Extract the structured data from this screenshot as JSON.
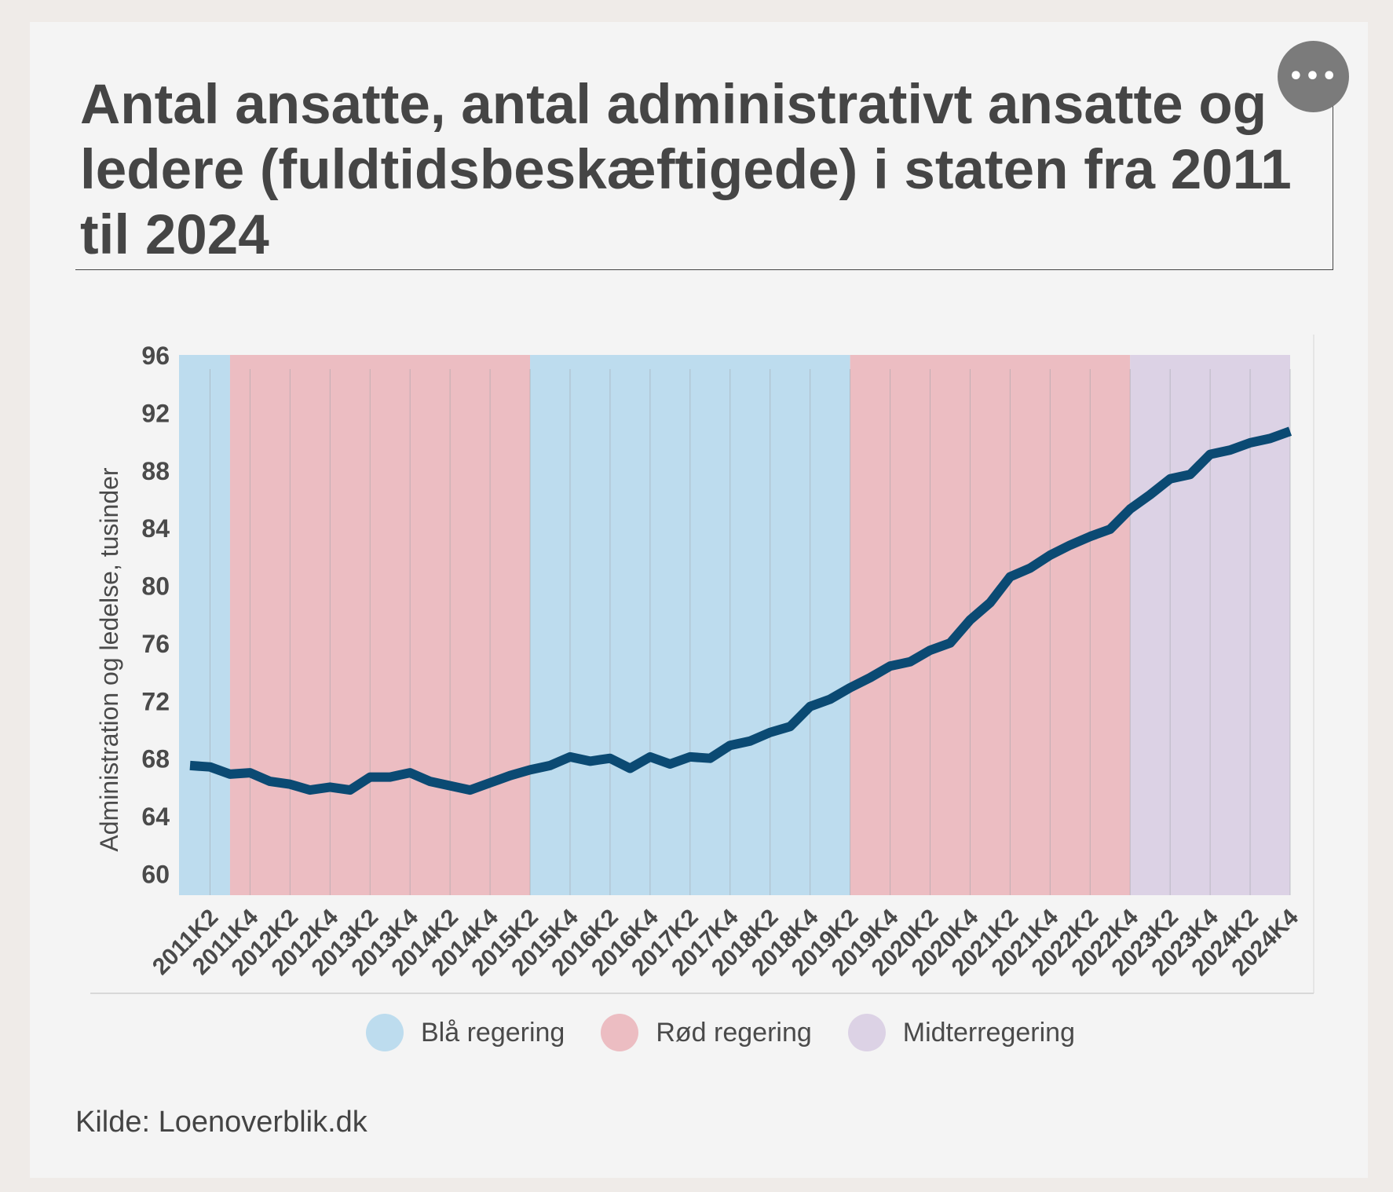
{
  "title": "Antal ansatte, antal administrativt ansatte og ledere (fuldtidsbeskæftigede) i staten fra 2011 til 2024",
  "menu_icon": "more-horizontal-icon",
  "menu_label": "•••",
  "source": "Kilde: Loenoverblik.dk",
  "legend": [
    {
      "label": "Blå regering",
      "color": "#bddcee"
    },
    {
      "label": "Rød regering",
      "color": "#ecbdc2"
    },
    {
      "label": "Midterregering",
      "color": "#dcd2e5"
    }
  ],
  "chart_data": {
    "type": "line",
    "title": "Antal ansatte, antal administrativt ansatte og ledere (fuldtidsbeskæftigede) i staten fra 2011 til 2024",
    "xlabel": "",
    "ylabel": "Administration og ledelse, tusinder",
    "ylim": [
      58.5,
      96
    ],
    "yticks": [
      60,
      64,
      68,
      72,
      76,
      80,
      84,
      88,
      92,
      96
    ],
    "xtick_labels": [
      "2011K2",
      "2011K4",
      "2012K2",
      "2012K4",
      "2013K2",
      "2013K4",
      "2014K2",
      "2014K4",
      "2015K2",
      "2015K4",
      "2016K2",
      "2016K4",
      "2017K2",
      "2017K4",
      "2018K2",
      "2018K4",
      "2019K2",
      "2019K4",
      "2020K2",
      "2020K4",
      "2021K2",
      "2021K4",
      "2022K2",
      "2022K4",
      "2023K2",
      "2023K4",
      "2024K2",
      "2024K4"
    ],
    "x": [
      "2011K1",
      "2011K2",
      "2011K3",
      "2011K4",
      "2012K1",
      "2012K2",
      "2012K3",
      "2012K4",
      "2013K1",
      "2013K2",
      "2013K3",
      "2013K4",
      "2014K1",
      "2014K2",
      "2014K3",
      "2014K4",
      "2015K1",
      "2015K2",
      "2015K3",
      "2015K4",
      "2016K1",
      "2016K2",
      "2016K3",
      "2016K4",
      "2017K1",
      "2017K2",
      "2017K3",
      "2017K4",
      "2018K1",
      "2018K2",
      "2018K3",
      "2018K4",
      "2019K1",
      "2019K2",
      "2019K3",
      "2019K4",
      "2020K1",
      "2020K2",
      "2020K3",
      "2020K4",
      "2021K1",
      "2021K2",
      "2021K3",
      "2021K4",
      "2022K1",
      "2022K2",
      "2022K3",
      "2022K4",
      "2023K1",
      "2023K2",
      "2023K3",
      "2023K4",
      "2024K1",
      "2024K2",
      "2024K3",
      "2024K4"
    ],
    "series": [
      {
        "color": "#0b4a73",
        "values": [
          67.5,
          67.4,
          66.9,
          67.0,
          66.4,
          66.2,
          65.8,
          66.0,
          65.8,
          66.7,
          66.7,
          67.0,
          66.4,
          66.1,
          65.8,
          66.3,
          66.8,
          67.2,
          67.5,
          68.1,
          67.8,
          68.0,
          67.3,
          68.1,
          67.6,
          68.1,
          68.0,
          68.9,
          69.2,
          69.8,
          70.2,
          71.6,
          72.1,
          72.9,
          73.6,
          74.4,
          74.7,
          75.5,
          76.0,
          77.6,
          78.8,
          80.6,
          81.2,
          82.1,
          82.8,
          83.4,
          83.9,
          85.3,
          86.3,
          87.4,
          87.7,
          89.1,
          89.4,
          89.9,
          90.2,
          90.7
        ]
      }
    ],
    "bands": [
      {
        "label": "Blå regering",
        "from": "2011K1",
        "to": "2011K3",
        "color": "#bddcee"
      },
      {
        "label": "Rød regering",
        "from": "2011K3",
        "to": "2015K2",
        "color": "#ecbdc2"
      },
      {
        "label": "Blå regering",
        "from": "2015K2",
        "to": "2019K2",
        "color": "#bddcee"
      },
      {
        "label": "Rød regering",
        "from": "2019K2",
        "to": "2022K4",
        "color": "#ecbdc2"
      },
      {
        "label": "Midterregering",
        "from": "2022K4",
        "to": "2024K4",
        "color": "#dcd2e5"
      }
    ],
    "grid": {
      "vertical": true,
      "horizontal": false
    },
    "legend_position": "bottom"
  }
}
